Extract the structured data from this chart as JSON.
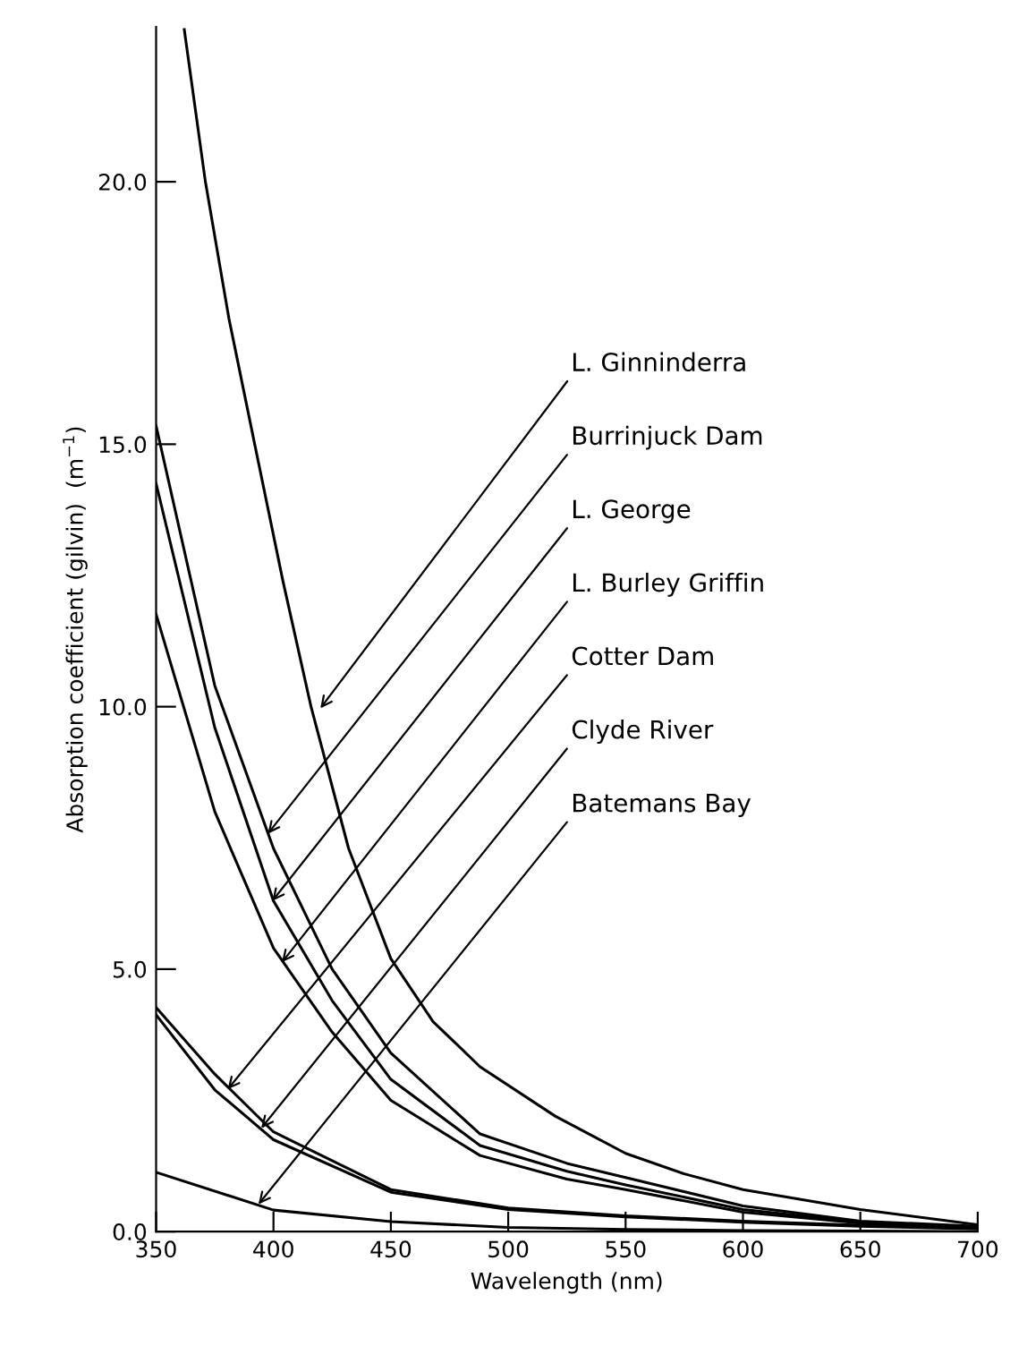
{
  "chart_data": {
    "type": "line",
    "xlabel": "Wavelength (nm)",
    "ylabel": "Absorption coefficient (gilvin)  (m$^{−1}$)",
    "xlim": [
      350,
      700
    ],
    "xticks": [
      350,
      400,
      450,
      500,
      550,
      600,
      650,
      700
    ],
    "ylim": [
      0,
      22.95
    ],
    "yticks": [
      {
        "value": 0,
        "label": "0.0"
      },
      {
        "value": 5,
        "label": "5.0"
      },
      {
        "value": 10,
        "label": "10.0"
      },
      {
        "value": 15,
        "label": "15.0"
      },
      {
        "value": 20,
        "label": "20.0"
      }
    ],
    "marker": "none",
    "line_style": "solid",
    "series": [
      {
        "color": "#000000",
        "x": [
          362,
          371,
          381,
          392,
          404,
          416,
          432,
          450,
          468,
          488,
          520,
          550,
          575,
          600,
          650,
          700
        ],
        "values": [
          22.9,
          20,
          17.4,
          15,
          12.4,
          10,
          7.3,
          5.2,
          4.0,
          3.14,
          2.2,
          1.49,
          1.1,
          0.8,
          0.42,
          0.13
        ]
      },
      {
        "color": "#000000",
        "x": [
          350,
          375,
          400,
          425,
          450,
          488,
          525,
          550,
          600,
          650,
          700
        ],
        "values": [
          15.35,
          10.4,
          7.3,
          5.0,
          3.4,
          1.86,
          1.3,
          1.03,
          0.49,
          0.2,
          0.1
        ]
      },
      {
        "color": "#000000",
        "x": [
          350,
          375,
          400,
          425,
          450,
          488,
          525,
          550,
          600,
          650,
          700
        ],
        "values": [
          14.25,
          9.6,
          6.3,
          4.4,
          2.9,
          1.64,
          1.15,
          0.89,
          0.42,
          0.18,
          0.08
        ]
      },
      {
        "color": "#000000",
        "x": [
          350,
          375,
          400,
          425,
          450,
          488,
          525,
          550,
          600,
          650,
          700
        ],
        "values": [
          11.76,
          8.0,
          5.4,
          3.8,
          2.5,
          1.45,
          1.0,
          0.8,
          0.37,
          0.16,
          0.07
        ]
      },
      {
        "color": "#000000",
        "x": [
          350,
          375,
          400,
          450,
          500,
          550,
          600,
          650,
          700
        ],
        "values": [
          4.27,
          3.0,
          1.9,
          0.8,
          0.45,
          0.3,
          0.2,
          0.12,
          0.07
        ]
      },
      {
        "color": "#000000",
        "x": [
          350,
          375,
          400,
          450,
          500,
          550,
          600,
          650,
          700
        ],
        "values": [
          4.13,
          2.7,
          1.75,
          0.75,
          0.42,
          0.28,
          0.18,
          0.1,
          0.05
        ]
      },
      {
        "color": "#000000",
        "x": [
          350,
          400,
          450,
          500,
          550,
          600,
          650,
          700
        ],
        "values": [
          1.13,
          0.41,
          0.19,
          0.08,
          0.04,
          0.02,
          0.01,
          0.0
        ]
      }
    ],
    "annotations": [
      {
        "text": "L. Ginninderra",
        "x": 420,
        "y": 9.97
      },
      {
        "text": "Burrinjuck Dam",
        "x": 397.6,
        "y": 7.58
      },
      {
        "text": "L. George",
        "x": 399.5,
        "y": 6.3
      },
      {
        "text": "L. Burley Griffin",
        "x": 403.6,
        "y": 5.13
      },
      {
        "text": "Cotter Dam",
        "x": 380.5,
        "y": 2.71
      },
      {
        "text": "Clyde River",
        "x": 394.8,
        "y": 1.97
      },
      {
        "text": "Batemans Bay",
        "x": 393.6,
        "y": 0.52
      }
    ]
  }
}
